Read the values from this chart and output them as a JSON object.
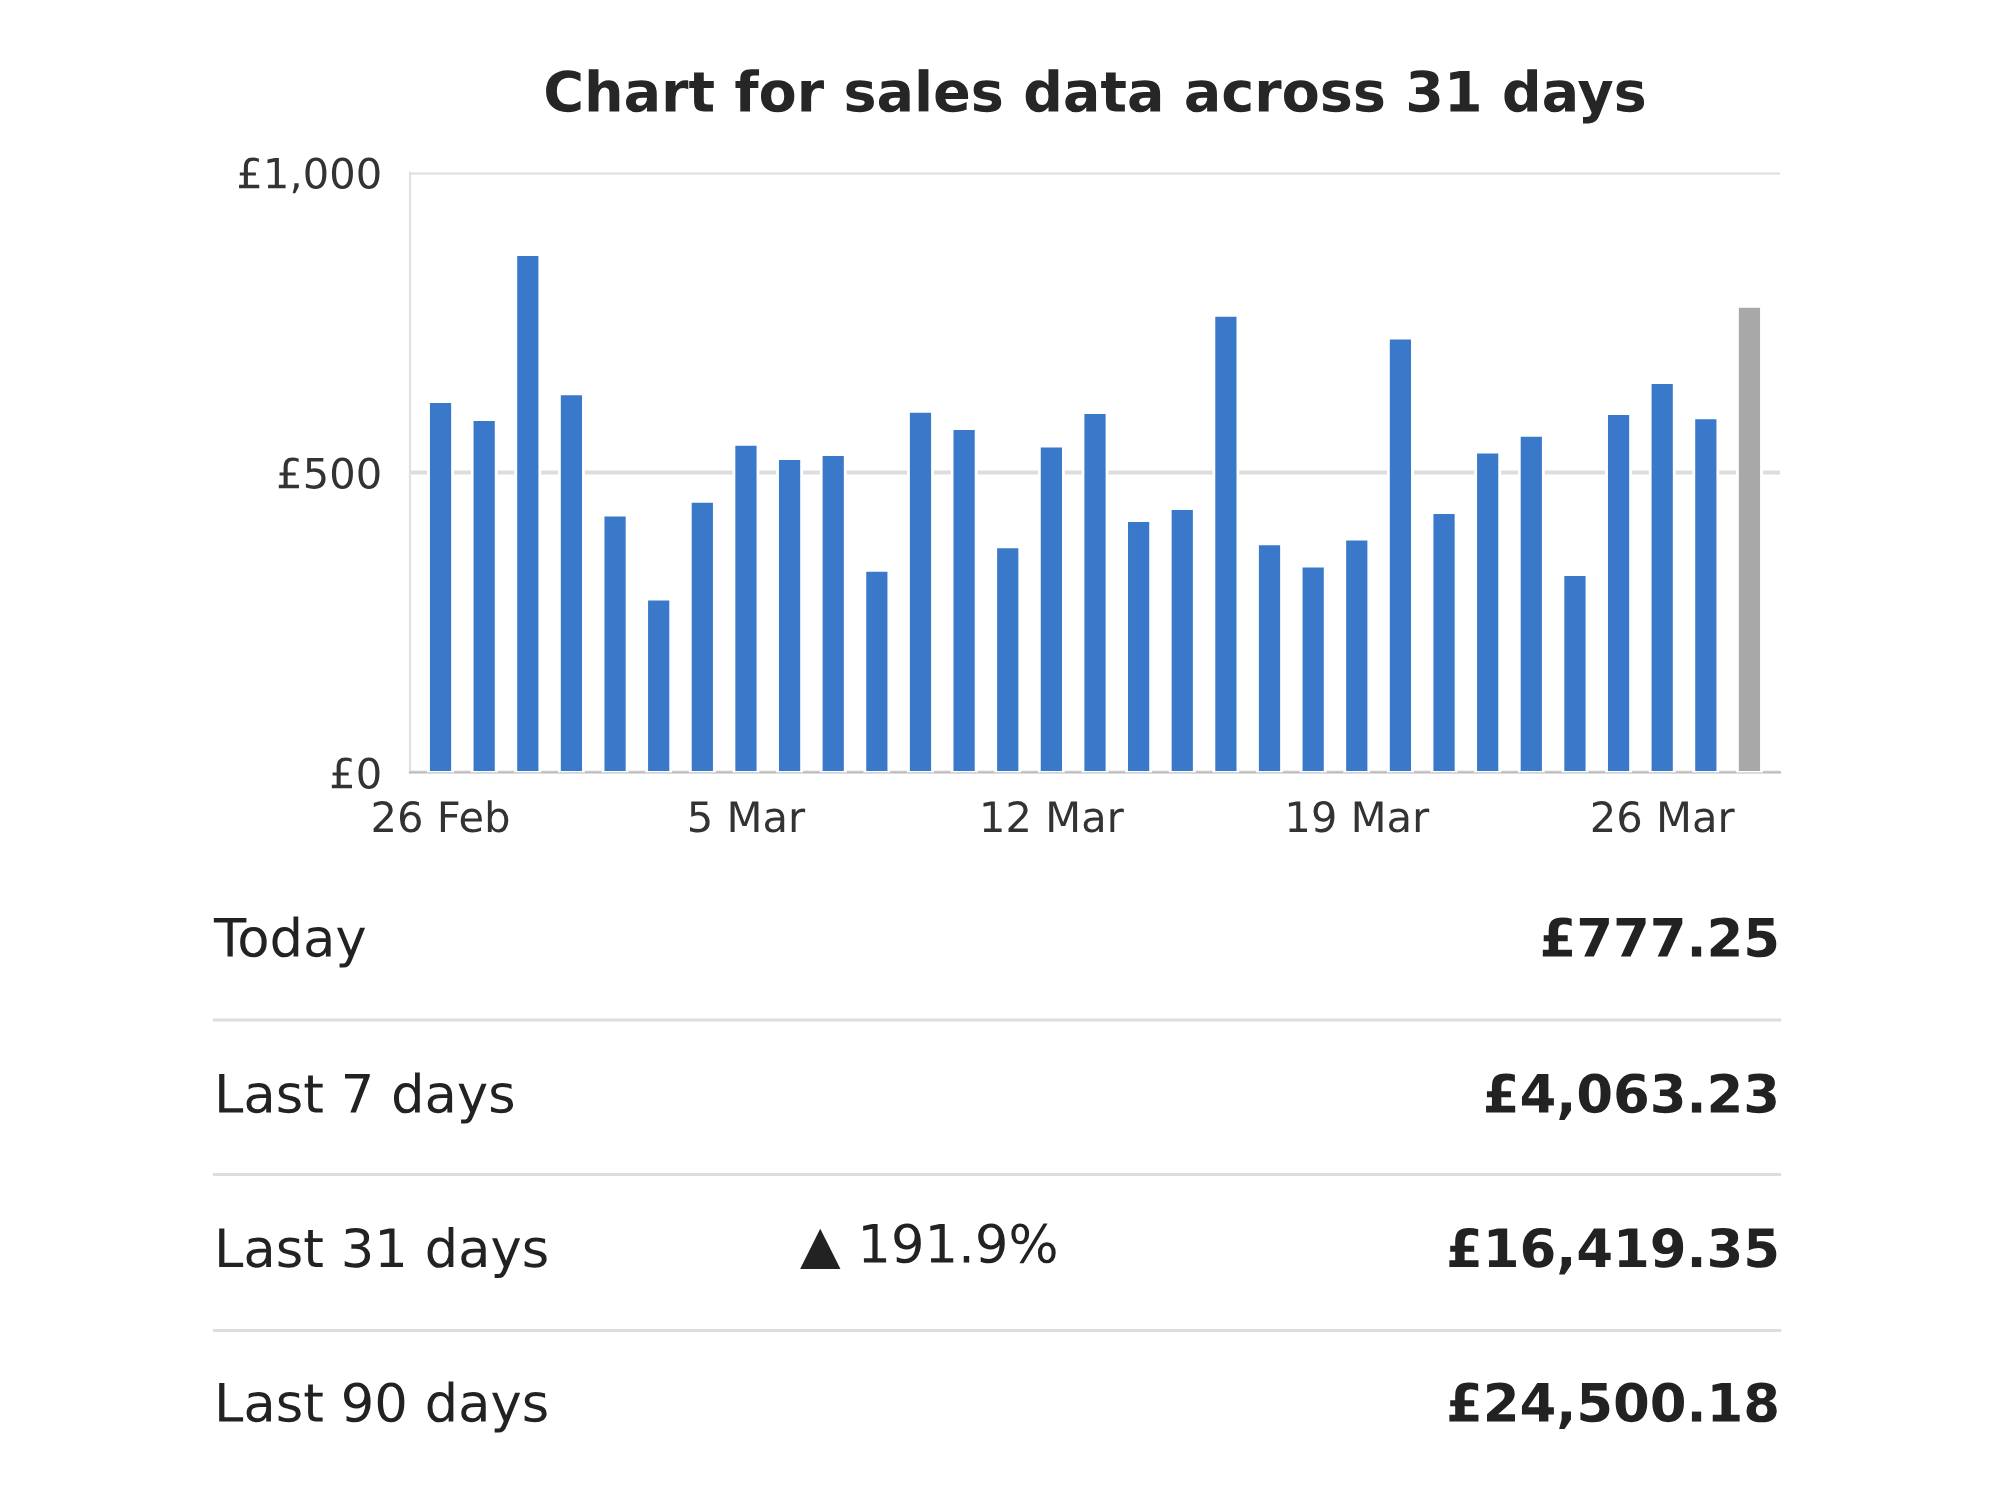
{
  "chart_data": {
    "type": "bar",
    "title": "Chart for sales data across 31 days",
    "categories": [
      "26 Feb",
      null,
      null,
      null,
      null,
      null,
      null,
      "5 Mar",
      null,
      null,
      null,
      null,
      null,
      null,
      "12 Mar",
      null,
      null,
      null,
      null,
      null,
      null,
      "19 Mar",
      null,
      null,
      null,
      null,
      null,
      null,
      "26 Mar",
      null,
      null
    ],
    "values": [
      618,
      588,
      863,
      631,
      429,
      289,
      452,
      547,
      523,
      530,
      337,
      602,
      573,
      376,
      544,
      600,
      420,
      440,
      762,
      381,
      344,
      389,
      724,
      433,
      534,
      562,
      330,
      598,
      650,
      591,
      777
    ],
    "colors": [
      "#3a78c9",
      "#3a78c9",
      "#3a78c9",
      "#3a78c9",
      "#3a78c9",
      "#3a78c9",
      "#3a78c9",
      "#3a78c9",
      "#3a78c9",
      "#3a78c9",
      "#3a78c9",
      "#3a78c9",
      "#3a78c9",
      "#3a78c9",
      "#3a78c9",
      "#3a78c9",
      "#3a78c9",
      "#3a78c9",
      "#3a78c9",
      "#3a78c9",
      "#3a78c9",
      "#3a78c9",
      "#3a78c9",
      "#3a78c9",
      "#3a78c9",
      "#3a78c9",
      "#3a78c9",
      "#3a78c9",
      "#3a78c9",
      "#3a78c9",
      "#a8a8a8"
    ],
    "ylim": [
      0,
      1000
    ],
    "yticks": [
      {
        "value": 0,
        "label": "£0"
      },
      {
        "value": 500,
        "label": "£500"
      },
      {
        "value": 1000,
        "label": "£1,000"
      }
    ],
    "grid": "y",
    "annotations": [
      "Today",
      "£777.25",
      "Last 7 days",
      "£4,063.23",
      "Last 31 days",
      "▲ 191.9%",
      "£16,419.35",
      "Last 90 days",
      "£24,500.18"
    ]
  }
}
